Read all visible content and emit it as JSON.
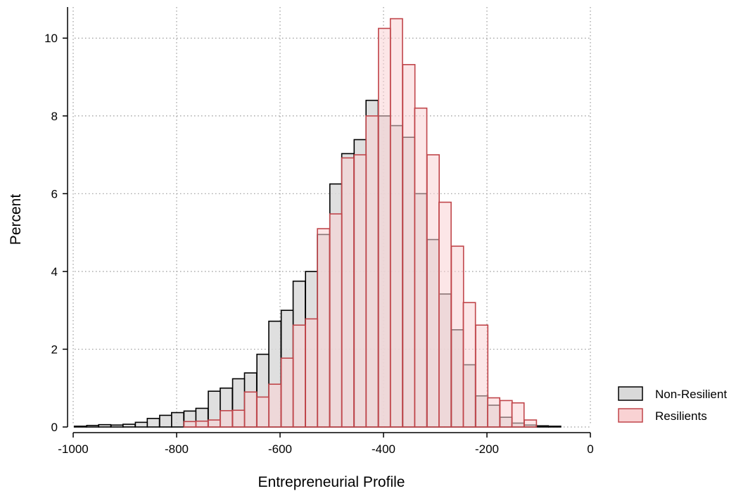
{
  "chart_data": {
    "type": "bar",
    "title": "",
    "xlabel": "Entrepreneurial Profile",
    "ylabel": "Percent",
    "xlim": [
      -1000,
      0
    ],
    "ylim": [
      0,
      10.8
    ],
    "bin_width": 23.5,
    "x_ticks": [
      -1000,
      -800,
      -600,
      -400,
      -200,
      0
    ],
    "x_tick_labels": [
      "-1000",
      "-800",
      "-600",
      "-400",
      "-200",
      "0"
    ],
    "y_ticks": [
      0,
      2,
      4,
      6,
      8,
      10
    ],
    "y_tick_labels": [
      "0",
      "2",
      "4",
      "6",
      "8",
      "10"
    ],
    "grid": true,
    "legend_position": "bottom-right",
    "series": [
      {
        "name": "Non-Resilient",
        "color_fill": "#d9d9d9",
        "color_edge": "#000000",
        "bins": [
          [
            -986,
            0.02
          ],
          [
            -962,
            0.04
          ],
          [
            -939,
            0.06
          ],
          [
            -915,
            0.05
          ],
          [
            -892,
            0.07
          ],
          [
            -868,
            0.12
          ],
          [
            -845,
            0.22
          ],
          [
            -821,
            0.3
          ],
          [
            -798,
            0.37
          ],
          [
            -774,
            0.41
          ],
          [
            -751,
            0.48
          ],
          [
            -727,
            0.92
          ],
          [
            -704,
            1.0
          ],
          [
            -680,
            1.24
          ],
          [
            -657,
            1.39
          ],
          [
            -633,
            1.87
          ],
          [
            -610,
            2.72
          ],
          [
            -586,
            3.0
          ],
          [
            -563,
            3.75
          ],
          [
            -539,
            4.0
          ],
          [
            -516,
            4.95
          ],
          [
            -492,
            6.25
          ],
          [
            -469,
            7.03
          ],
          [
            -445,
            7.39
          ],
          [
            -422,
            8.4
          ],
          [
            -398,
            8.0
          ],
          [
            -375,
            7.75
          ],
          [
            -351,
            7.45
          ],
          [
            -328,
            6.0
          ],
          [
            -304,
            4.82
          ],
          [
            -281,
            3.42
          ],
          [
            -257,
            2.5
          ],
          [
            -234,
            1.6
          ],
          [
            -210,
            0.8
          ],
          [
            -187,
            0.56
          ],
          [
            -163,
            0.25
          ],
          [
            -140,
            0.1
          ],
          [
            -116,
            0.05
          ],
          [
            -93,
            0.03
          ],
          [
            -69,
            0.02
          ]
        ]
      },
      {
        "name": "Resilients",
        "color_fill": "#f9d2d3",
        "color_edge": "#c0454a",
        "bins": [
          [
            -774,
            0.14
          ],
          [
            -751,
            0.15
          ],
          [
            -727,
            0.18
          ],
          [
            -704,
            0.42
          ],
          [
            -680,
            0.43
          ],
          [
            -657,
            0.9
          ],
          [
            -633,
            0.77
          ],
          [
            -610,
            1.1
          ],
          [
            -586,
            1.77
          ],
          [
            -563,
            2.62
          ],
          [
            -539,
            2.78
          ],
          [
            -516,
            5.1
          ],
          [
            -492,
            5.48
          ],
          [
            -469,
            6.92
          ],
          [
            -445,
            7.0
          ],
          [
            -422,
            8.0
          ],
          [
            -398,
            10.25
          ],
          [
            -375,
            10.5
          ],
          [
            -351,
            9.32
          ],
          [
            -328,
            8.2
          ],
          [
            -304,
            7.0
          ],
          [
            -281,
            5.78
          ],
          [
            -257,
            4.65
          ],
          [
            -234,
            3.2
          ],
          [
            -210,
            2.62
          ],
          [
            -187,
            0.75
          ],
          [
            -163,
            0.68
          ],
          [
            -140,
            0.62
          ],
          [
            -116,
            0.18
          ]
        ]
      }
    ]
  }
}
